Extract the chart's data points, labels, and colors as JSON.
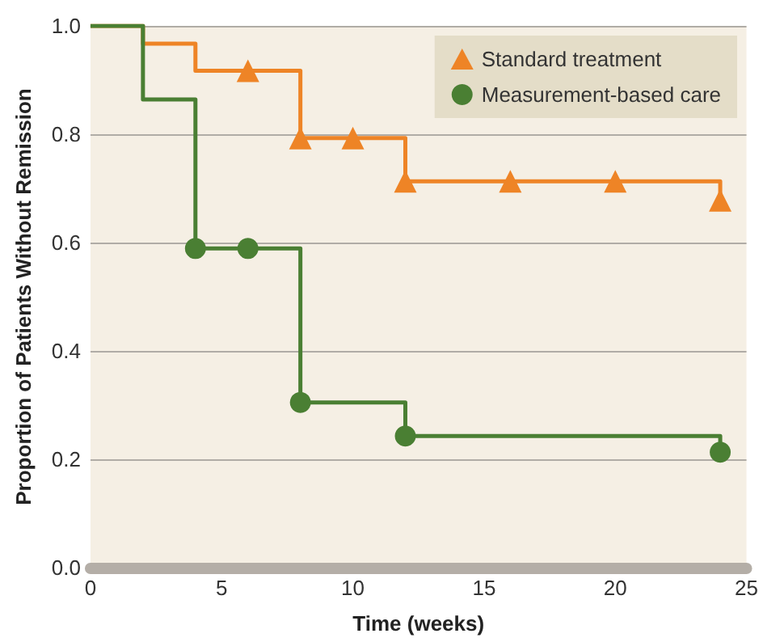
{
  "chart_data": {
    "type": "step",
    "xlabel": "Time (weeks)",
    "ylabel": "Proportion of Patients Without Remission",
    "xlim": [
      0,
      25
    ],
    "xticks": [
      0,
      5,
      10,
      15,
      20,
      25
    ],
    "ylim": [
      0,
      1
    ],
    "yticks": [
      {
        "value": 0,
        "label": "0.0"
      },
      {
        "value": 0.2,
        "label": "0.2"
      },
      {
        "value": 0.4,
        "label": "0.4"
      },
      {
        "value": 0.6,
        "label": "0.6"
      },
      {
        "value": 0.8,
        "label": "0.8"
      },
      {
        "value": 1,
        "label": "1.0"
      }
    ],
    "grid": "y",
    "legend": "top right",
    "series": [
      {
        "color": "#ee8426",
        "marker": "none",
        "x": [
          0,
          2,
          4,
          8,
          12,
          24
        ],
        "values": [
          1,
          0.967,
          0.917,
          0.793,
          0.713,
          0.678
        ]
      },
      {
        "color": "#4a7f33",
        "marker": "none",
        "x": [
          0,
          2,
          4,
          8,
          12,
          24
        ],
        "values": [
          1,
          0.864,
          0.589,
          0.305,
          0.243,
          0.213
        ]
      },
      {
        "type": "scatter",
        "name": "Standard treatment",
        "color": "#ee8426",
        "marker": "triangle",
        "x": [
          6,
          8,
          10,
          12,
          16,
          20,
          24
        ],
        "values": [
          0.917,
          0.793,
          0.793,
          0.713,
          0.713,
          0.713,
          0.678
        ]
      },
      {
        "type": "scatter",
        "name": "Measurement-based care",
        "color": "#4a7f33",
        "marker": "circle",
        "x": [
          4,
          6,
          8,
          12,
          24
        ],
        "values": [
          0.589,
          0.589,
          0.305,
          0.243,
          0.213
        ]
      }
    ]
  }
}
